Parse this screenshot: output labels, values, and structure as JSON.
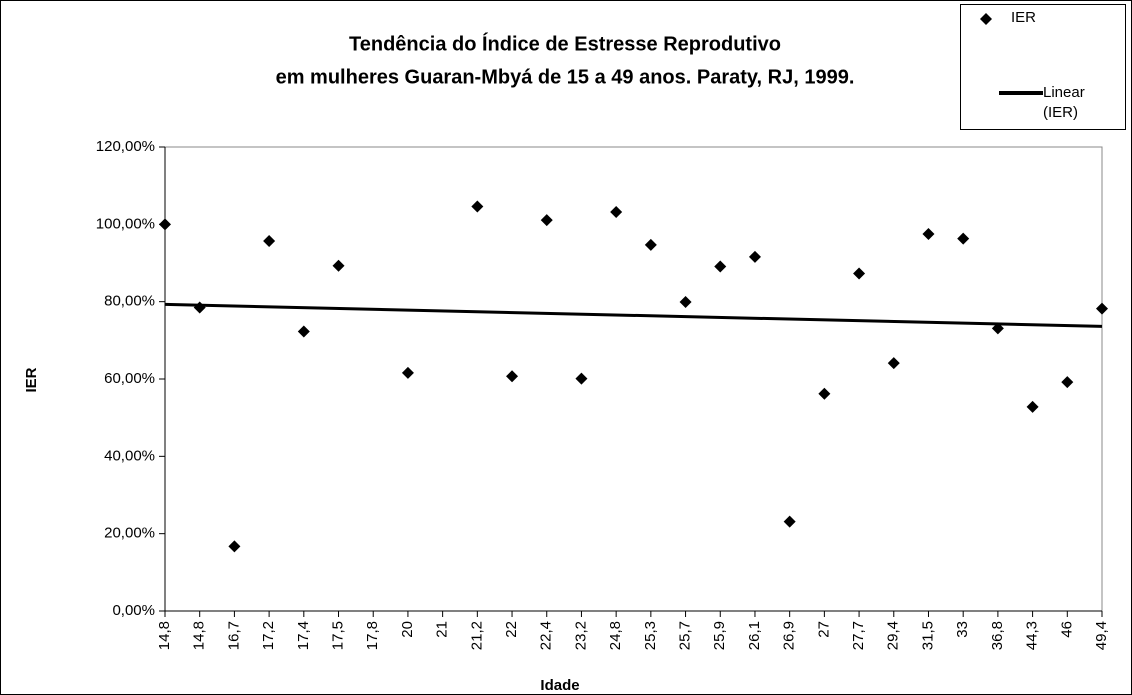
{
  "chart_data": {
    "type": "scatter",
    "title": [
      "Tendência do Índice de Estresse Reprodutivo",
      "em mulheres Guaran-Mbyá de 15 a 49 anos.  Paraty, RJ, 1999."
    ],
    "x_label": "Idade",
    "y_label": "IER",
    "categories": [
      "14,8",
      "14,8",
      "16,7",
      "17,2",
      "17,4",
      "17,5",
      "17,8",
      "20",
      "21",
      "21,2",
      "22",
      "22,4",
      "23,2",
      "24,8",
      "25,3",
      "25,7",
      "25,9",
      "26,1",
      "26,9",
      "27",
      "27,7",
      "29,4",
      "31,5",
      "33",
      "36,8",
      "44,3",
      "46",
      "49,4"
    ],
    "series": [
      {
        "name": "IER",
        "color": "#000000",
        "values": [
          100,
          78.5,
          16.7,
          95.7,
          72.3,
          89.3,
          null,
          61.6,
          null,
          104.6,
          60.7,
          101.1,
          60.1,
          103.2,
          94.7,
          79.9,
          89.1,
          91.6,
          23.1,
          56.2,
          87.3,
          64.1,
          97.5,
          96.3,
          73.1,
          52.8,
          59.2,
          78.2
        ]
      }
    ],
    "trendline": {
      "name": "Linear (IER)",
      "color": "#000000",
      "values": [
        79.3,
        73.6
      ]
    },
    "ylim": [
      0,
      120
    ],
    "yticks": [
      {
        "value": 0,
        "label": "0,00%"
      },
      {
        "value": 20,
        "label": "20,00%"
      },
      {
        "value": 40,
        "label": "40,00%"
      },
      {
        "value": 60,
        "label": "60,00%"
      },
      {
        "value": 80,
        "label": "80,00%"
      },
      {
        "value": 100,
        "label": "100,00%"
      },
      {
        "value": 120,
        "label": "120,00%"
      }
    ],
    "legend": "top-right"
  }
}
